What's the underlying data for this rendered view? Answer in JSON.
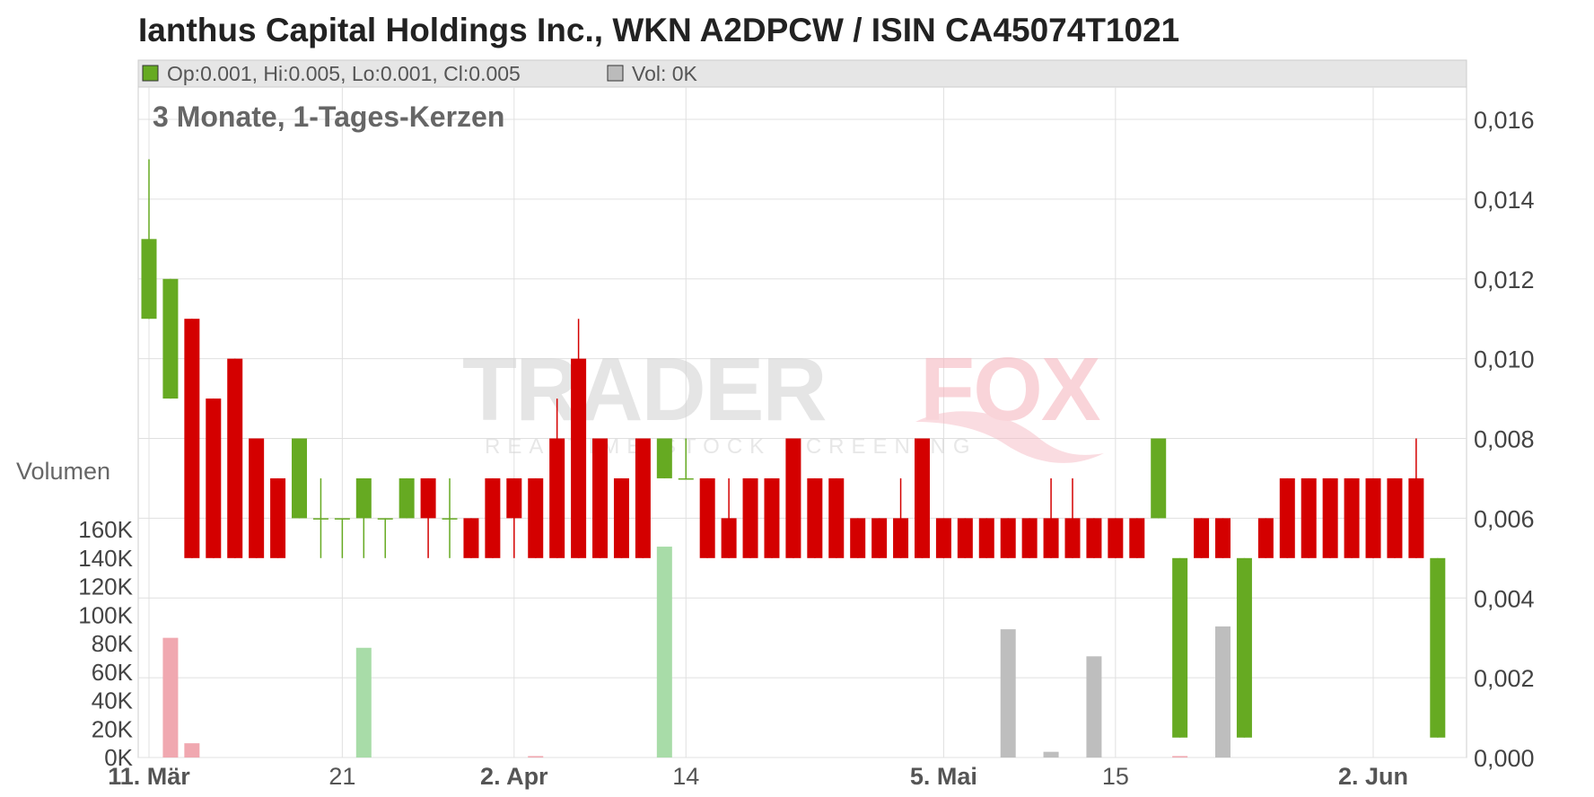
{
  "header": {
    "title": "Ianthus Capital Holdings Inc., WKN A2DPCW / ISIN CA45074T1021",
    "ohlc": "Op:0.001, Hi:0.005, Lo:0.001, Cl:0.005",
    "volume": "Vol: 0K"
  },
  "watermark": {
    "brand_left": "TRADER",
    "brand_right": "FOX",
    "tagline": "REALTIME STOCK SCREENING"
  },
  "colors": {
    "up": "#66aa22",
    "down": "#d40000",
    "vol_up": "#a8dca8",
    "vol_down": "#f0a8b0",
    "vol_neutral": "#bebebe",
    "grid": "#e0e0e0",
    "legend_bg": "#e6e6e6"
  },
  "chart_data": {
    "type": "candlestick",
    "subtitle": "3 Monate, 1-Tages-Kerzen",
    "price_axis": {
      "min": 0,
      "max": 0.016,
      "ticks": [
        "0,000",
        "0,002",
        "0,004",
        "0,006",
        "0,008",
        "0,010",
        "0,012",
        "0,014",
        "0,016"
      ]
    },
    "volume_axis": {
      "label": "Volumen",
      "min": 0,
      "max": 160000,
      "ticks": [
        "0K",
        "20K",
        "40K",
        "60K",
        "80K",
        "100K",
        "120K",
        "140K",
        "160K"
      ]
    },
    "x_ticks": [
      {
        "label": "11. Mär",
        "index": 0,
        "bold": true
      },
      {
        "label": "21",
        "index": 9,
        "bold": false
      },
      {
        "label": "2. Apr",
        "index": 17,
        "bold": true
      },
      {
        "label": "14",
        "index": 25,
        "bold": false
      },
      {
        "label": "5. Mai",
        "index": 37,
        "bold": true
      },
      {
        "label": "15",
        "index": 45,
        "bold": false
      },
      {
        "label": "2. Jun",
        "index": 57,
        "bold": true
      }
    ],
    "candles": [
      {
        "o": 0.011,
        "h": 0.015,
        "l": 0.011,
        "c": 0.013
      },
      {
        "o": 0.009,
        "h": 0.012,
        "l": 0.009,
        "c": 0.012
      },
      {
        "o": 0.011,
        "h": 0.011,
        "l": 0.005,
        "c": 0.005
      },
      {
        "o": 0.009,
        "h": 0.009,
        "l": 0.005,
        "c": 0.005
      },
      {
        "o": 0.01,
        "h": 0.01,
        "l": 0.005,
        "c": 0.005
      },
      {
        "o": 0.008,
        "h": 0.008,
        "l": 0.005,
        "c": 0.005
      },
      {
        "o": 0.007,
        "h": 0.007,
        "l": 0.005,
        "c": 0.005
      },
      {
        "o": 0.006,
        "h": 0.008,
        "l": 0.006,
        "c": 0.008
      },
      {
        "o": 0.006,
        "h": 0.007,
        "l": 0.005,
        "c": 0.006
      },
      {
        "o": 0.006,
        "h": 0.006,
        "l": 0.005,
        "c": 0.006
      },
      {
        "o": 0.006,
        "h": 0.007,
        "l": 0.005,
        "c": 0.007
      },
      {
        "o": 0.006,
        "h": 0.006,
        "l": 0.005,
        "c": 0.006
      },
      {
        "o": 0.006,
        "h": 0.007,
        "l": 0.006,
        "c": 0.007
      },
      {
        "o": 0.007,
        "h": 0.007,
        "l": 0.005,
        "c": 0.006
      },
      {
        "o": 0.006,
        "h": 0.007,
        "l": 0.005,
        "c": 0.006
      },
      {
        "o": 0.006,
        "h": 0.006,
        "l": 0.005,
        "c": 0.005
      },
      {
        "o": 0.007,
        "h": 0.007,
        "l": 0.005,
        "c": 0.005
      },
      {
        "o": 0.007,
        "h": 0.007,
        "l": 0.005,
        "c": 0.006
      },
      {
        "o": 0.007,
        "h": 0.007,
        "l": 0.005,
        "c": 0.005
      },
      {
        "o": 0.008,
        "h": 0.009,
        "l": 0.005,
        "c": 0.005
      },
      {
        "o": 0.01,
        "h": 0.011,
        "l": 0.005,
        "c": 0.005
      },
      {
        "o": 0.008,
        "h": 0.008,
        "l": 0.005,
        "c": 0.005
      },
      {
        "o": 0.007,
        "h": 0.007,
        "l": 0.005,
        "c": 0.005
      },
      {
        "o": 0.008,
        "h": 0.008,
        "l": 0.005,
        "c": 0.005
      },
      {
        "o": 0.007,
        "h": 0.008,
        "l": 0.007,
        "c": 0.008
      },
      {
        "o": 0.007,
        "h": 0.008,
        "l": 0.007,
        "c": 0.007
      },
      {
        "o": 0.007,
        "h": 0.007,
        "l": 0.005,
        "c": 0.005
      },
      {
        "o": 0.006,
        "h": 0.007,
        "l": 0.005,
        "c": 0.005
      },
      {
        "o": 0.007,
        "h": 0.007,
        "l": 0.005,
        "c": 0.005
      },
      {
        "o": 0.007,
        "h": 0.007,
        "l": 0.005,
        "c": 0.005
      },
      {
        "o": 0.008,
        "h": 0.008,
        "l": 0.005,
        "c": 0.005
      },
      {
        "o": 0.007,
        "h": 0.007,
        "l": 0.005,
        "c": 0.005
      },
      {
        "o": 0.007,
        "h": 0.007,
        "l": 0.005,
        "c": 0.005
      },
      {
        "o": 0.006,
        "h": 0.006,
        "l": 0.005,
        "c": 0.005
      },
      {
        "o": 0.006,
        "h": 0.006,
        "l": 0.005,
        "c": 0.005
      },
      {
        "o": 0.006,
        "h": 0.007,
        "l": 0.005,
        "c": 0.005
      },
      {
        "o": 0.008,
        "h": 0.008,
        "l": 0.005,
        "c": 0.005
      },
      {
        "o": 0.006,
        "h": 0.006,
        "l": 0.005,
        "c": 0.005
      },
      {
        "o": 0.006,
        "h": 0.006,
        "l": 0.005,
        "c": 0.005
      },
      {
        "o": 0.006,
        "h": 0.006,
        "l": 0.005,
        "c": 0.005
      },
      {
        "o": 0.006,
        "h": 0.006,
        "l": 0.005,
        "c": 0.005
      },
      {
        "o": 0.006,
        "h": 0.006,
        "l": 0.005,
        "c": 0.005
      },
      {
        "o": 0.006,
        "h": 0.007,
        "l": 0.005,
        "c": 0.005
      },
      {
        "o": 0.006,
        "h": 0.007,
        "l": 0.005,
        "c": 0.005
      },
      {
        "o": 0.006,
        "h": 0.006,
        "l": 0.005,
        "c": 0.005
      },
      {
        "o": 0.006,
        "h": 0.006,
        "l": 0.005,
        "c": 0.005
      },
      {
        "o": 0.006,
        "h": 0.006,
        "l": 0.005,
        "c": 0.005
      },
      {
        "o": 0.006,
        "h": 0.008,
        "l": 0.006,
        "c": 0.008
      },
      {
        "o": 0.0005,
        "h": 0.005,
        "l": 0.0005,
        "c": 0.005
      },
      {
        "o": 0.006,
        "h": 0.006,
        "l": 0.005,
        "c": 0.005
      },
      {
        "o": 0.006,
        "h": 0.006,
        "l": 0.005,
        "c": 0.005
      },
      {
        "o": 0.0005,
        "h": 0.005,
        "l": 0.0005,
        "c": 0.005
      },
      {
        "o": 0.006,
        "h": 0.006,
        "l": 0.005,
        "c": 0.005
      },
      {
        "o": 0.007,
        "h": 0.007,
        "l": 0.005,
        "c": 0.005
      },
      {
        "o": 0.007,
        "h": 0.007,
        "l": 0.005,
        "c": 0.005
      },
      {
        "o": 0.007,
        "h": 0.007,
        "l": 0.005,
        "c": 0.005
      },
      {
        "o": 0.007,
        "h": 0.007,
        "l": 0.005,
        "c": 0.005
      },
      {
        "o": 0.007,
        "h": 0.007,
        "l": 0.005,
        "c": 0.005
      },
      {
        "o": 0.007,
        "h": 0.007,
        "l": 0.005,
        "c": 0.005
      },
      {
        "o": 0.007,
        "h": 0.008,
        "l": 0.005,
        "c": 0.005
      },
      {
        "o": 0.0005,
        "h": 0.005,
        "l": 0.0005,
        "c": 0.005
      }
    ],
    "volume_bars": [
      {
        "index": 1,
        "value": 84000,
        "dir": "down"
      },
      {
        "index": 2,
        "value": 10000,
        "dir": "down"
      },
      {
        "index": 10,
        "value": 77000,
        "dir": "up"
      },
      {
        "index": 18,
        "value": 1000,
        "dir": "down"
      },
      {
        "index": 24,
        "value": 148000,
        "dir": "up"
      },
      {
        "index": 40,
        "value": 90000,
        "dir": "neutral"
      },
      {
        "index": 42,
        "value": 4000,
        "dir": "neutral"
      },
      {
        "index": 44,
        "value": 71000,
        "dir": "neutral"
      },
      {
        "index": 48,
        "value": 1000,
        "dir": "down"
      },
      {
        "index": 50,
        "value": 92000,
        "dir": "neutral"
      }
    ]
  }
}
